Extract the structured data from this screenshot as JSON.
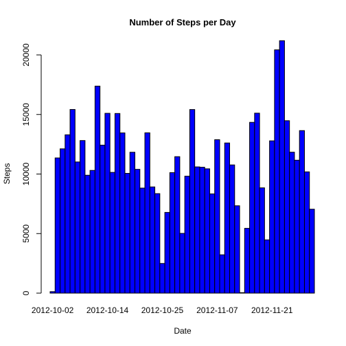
{
  "chart_data": {
    "type": "bar",
    "title": "Number of Steps per Day",
    "xlabel": "Date",
    "ylabel": "Steps",
    "color": "#0000ff",
    "categories": [
      "2012-10-02",
      null,
      null,
      null,
      null,
      null,
      null,
      null,
      null,
      null,
      null,
      "2012-10-14",
      null,
      null,
      null,
      null,
      null,
      null,
      null,
      null,
      null,
      null,
      "2012-10-25",
      null,
      null,
      null,
      null,
      null,
      null,
      null,
      null,
      null,
      null,
      "2012-11-07",
      null,
      null,
      null,
      null,
      null,
      null,
      null,
      null,
      null,
      null,
      "2012-11-21",
      null,
      null,
      null,
      null,
      null,
      null,
      null,
      null
    ],
    "values": [
      126,
      11352,
      12116,
      13294,
      15420,
      11015,
      12811,
      9900,
      10304,
      17382,
      12426,
      15098,
      10139,
      15084,
      13452,
      10056,
      11829,
      10395,
      8821,
      13460,
      8918,
      8355,
      2492,
      6778,
      10119,
      11458,
      5018,
      9819,
      15414,
      10600,
      10571,
      10439,
      8334,
      12883,
      3219,
      12608,
      10765,
      7336,
      41,
      5441,
      14339,
      15110,
      8841,
      4472,
      12787,
      20427,
      21194,
      14478,
      11834,
      11162,
      13646,
      10183,
      7047
    ],
    "ylim": [
      0,
      22000
    ],
    "yticks": [
      0,
      5000,
      10000,
      15000,
      20000
    ]
  }
}
